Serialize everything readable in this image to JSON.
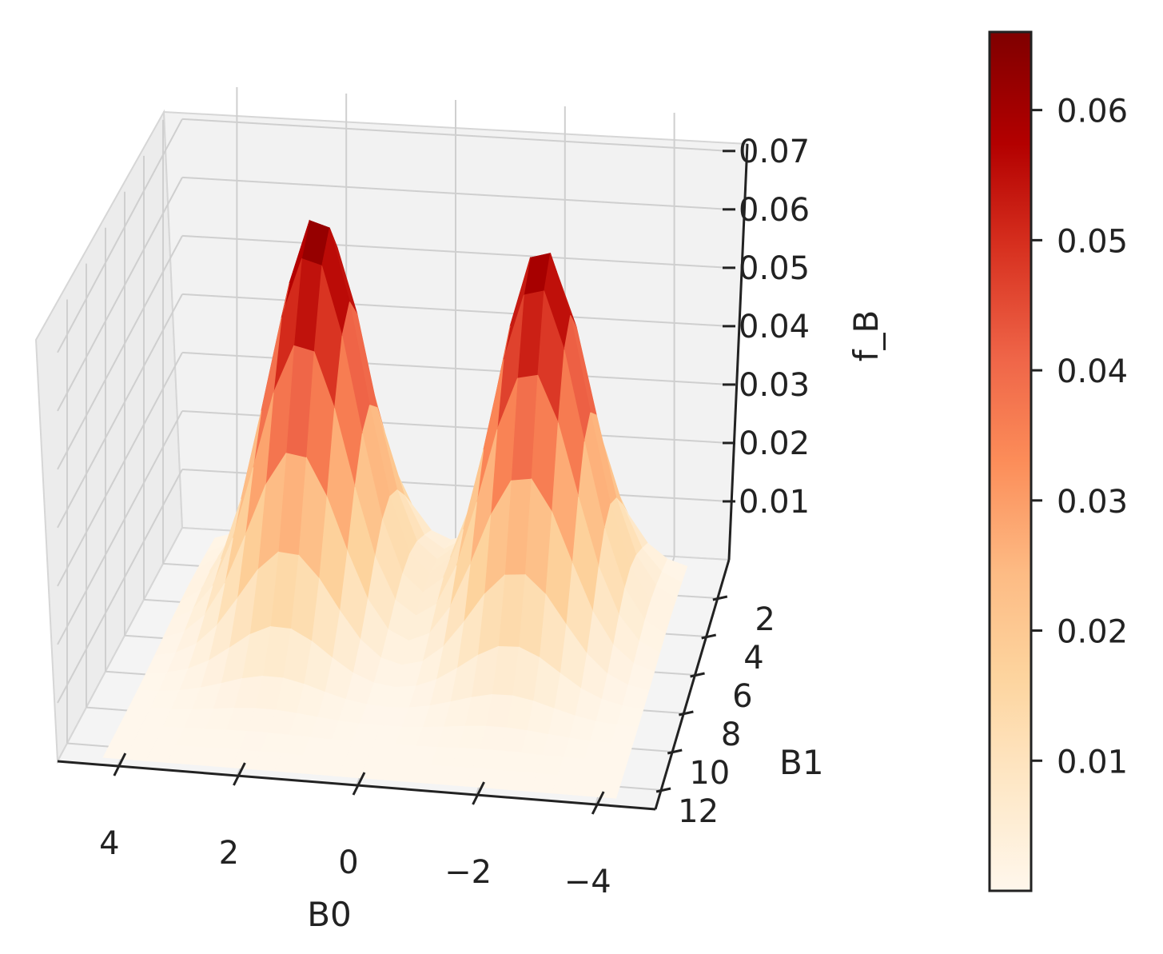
{
  "chart_data": {
    "type": "surface3d",
    "xlabel": "B0",
    "ylabel": "B1",
    "zlabel": "f_B",
    "x_ticks": [
      "4",
      "2",
      "0",
      "−2",
      "−4"
    ],
    "x_tick_values": [
      4,
      2,
      0,
      -2,
      -4
    ],
    "y_ticks": [
      "2",
      "4",
      "6",
      "8",
      "10",
      "12"
    ],
    "y_tick_values": [
      2,
      4,
      6,
      8,
      10,
      12
    ],
    "z_ticks": [
      "0.01",
      "0.02",
      "0.03",
      "0.04",
      "0.05",
      "0.06",
      "0.07"
    ],
    "z_tick_values": [
      0.01,
      0.02,
      0.03,
      0.04,
      0.05,
      0.06,
      0.07
    ],
    "colormap": "OrRd",
    "colorbar": {
      "ticks": [
        "0.01",
        "0.02",
        "0.03",
        "0.04",
        "0.05",
        "0.06"
      ],
      "tick_values": [
        0.01,
        0.02,
        0.03,
        0.04,
        0.05,
        0.06
      ],
      "range": [
        0.0,
        0.066
      ]
    },
    "peaks": [
      {
        "b0": 2.0,
        "b1": 3.5,
        "height": 0.066
      },
      {
        "b0": -2.0,
        "b1": 3.5,
        "height": 0.063
      }
    ],
    "grid_on": true
  },
  "colors": {
    "pane": "#f0f0f0",
    "gridline": "#cccccc",
    "axis": "#222222"
  }
}
